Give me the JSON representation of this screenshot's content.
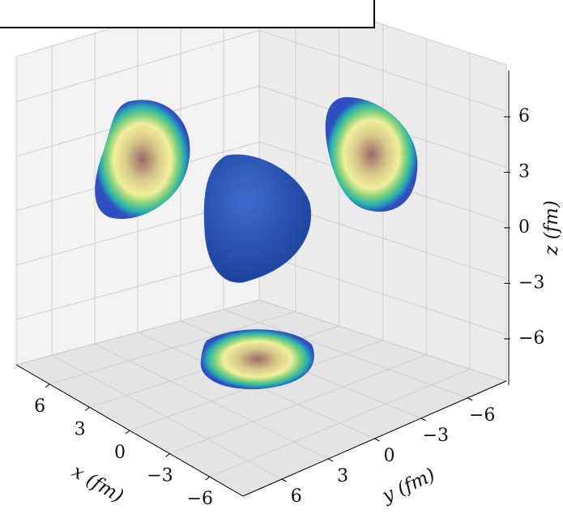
{
  "chart_data": {
    "type": "isosurface3d",
    "xlabel": "x (fm)",
    "ylabel": "y (fm)",
    "zlabel": "z (fm)",
    "xlim": [
      -8.5,
      8.5
    ],
    "ylim": [
      -8.5,
      8.5
    ],
    "zlim": [
      -8.5,
      8.5
    ],
    "xticks": [
      {
        "value": 6,
        "label": "6"
      },
      {
        "value": 3,
        "label": "3"
      },
      {
        "value": 0,
        "label": "0"
      },
      {
        "value": -3,
        "label": "−3"
      },
      {
        "value": -6,
        "label": "−6"
      }
    ],
    "yticks": [
      {
        "value": -6,
        "label": "−6"
      },
      {
        "value": -3,
        "label": "−3"
      },
      {
        "value": 0,
        "label": "0"
      },
      {
        "value": 3,
        "label": "3"
      },
      {
        "value": 6,
        "label": "6"
      }
    ],
    "zticks": [
      {
        "value": 6,
        "label": "6"
      },
      {
        "value": 3,
        "label": "3"
      },
      {
        "value": 0,
        "label": "0"
      },
      {
        "value": -3,
        "label": "−3"
      },
      {
        "value": -6,
        "label": "−6"
      }
    ],
    "surface_color": "#2a56b8",
    "grid": true
  }
}
